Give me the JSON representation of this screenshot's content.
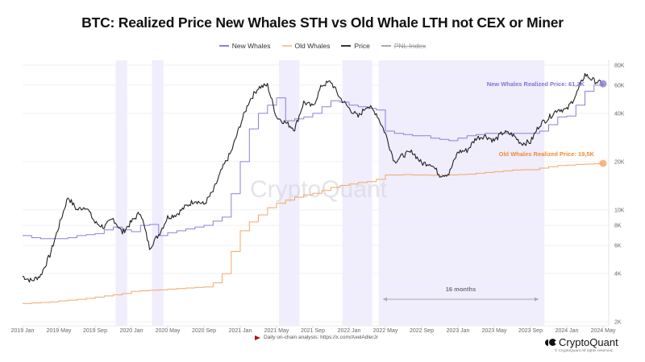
{
  "chart_data": {
    "type": "line",
    "title": "BTC: Realized Price New Whales STH vs Old Whale LTH not CEX or Miner",
    "xlabel": "",
    "ylabel": "",
    "yscale": "log",
    "ylim": [
      2000,
      80000
    ],
    "grid": true,
    "legend_position": "top-center",
    "legend": [
      {
        "name": "New Whales",
        "color": "#8a80d8",
        "disabled": false
      },
      {
        "name": "Old Whales",
        "color": "#f0a868",
        "disabled": false
      },
      {
        "name": "Price",
        "color": "#222222",
        "disabled": false
      },
      {
        "name": "PNL Index",
        "color": "#999999",
        "disabled": true
      }
    ],
    "y_ticks": [
      {
        "value": 80000,
        "label": "80K"
      },
      {
        "value": 60000,
        "label": "60K"
      },
      {
        "value": 40000,
        "label": "40K"
      },
      {
        "value": 20000,
        "label": "20K"
      },
      {
        "value": 10000,
        "label": "10K"
      },
      {
        "value": 8000,
        "label": "8K"
      },
      {
        "value": 6000,
        "label": "6K"
      },
      {
        "value": 4000,
        "label": "4K"
      },
      {
        "value": 2000,
        "label": "2K"
      }
    ],
    "x_ticks": [
      "2019 Jan",
      "2019 May",
      "2019 Sep",
      "2020 Jan",
      "2020 May",
      "2020 Sep",
      "2021 Jan",
      "2021 May",
      "2021 Sep",
      "2022 Jan",
      "2022 May",
      "2022 Sep",
      "2023 Jan",
      "2023 May",
      "2023 Sep",
      "2024 Jan",
      "2024 May"
    ],
    "x": [
      "2019-01",
      "2019-02",
      "2019-03",
      "2019-04",
      "2019-05",
      "2019-06",
      "2019-07",
      "2019-08",
      "2019-09",
      "2019-10",
      "2019-11",
      "2019-12",
      "2020-01",
      "2020-02",
      "2020-03",
      "2020-04",
      "2020-05",
      "2020-06",
      "2020-07",
      "2020-08",
      "2020-09",
      "2020-10",
      "2020-11",
      "2020-12",
      "2021-01",
      "2021-02",
      "2021-03",
      "2021-04",
      "2021-05",
      "2021-06",
      "2021-07",
      "2021-08",
      "2021-09",
      "2021-10",
      "2021-11",
      "2021-12",
      "2022-01",
      "2022-02",
      "2022-03",
      "2022-04",
      "2022-05",
      "2022-06",
      "2022-07",
      "2022-08",
      "2022-09",
      "2022-10",
      "2022-11",
      "2022-12",
      "2023-01",
      "2023-02",
      "2023-03",
      "2023-04",
      "2023-05",
      "2023-06",
      "2023-07",
      "2023-08",
      "2023-09",
      "2023-10",
      "2023-11",
      "2023-12",
      "2024-01",
      "2024-02",
      "2024-03",
      "2024-04",
      "2024-05"
    ],
    "series": [
      {
        "name": "Price",
        "color": "#222222",
        "values": [
          3850,
          3600,
          3900,
          5200,
          7900,
          12000,
          10000,
          10500,
          8300,
          7800,
          8800,
          7200,
          8400,
          9700,
          5800,
          7000,
          9000,
          9400,
          10500,
          11500,
          10800,
          13000,
          18000,
          23000,
          34000,
          48000,
          58000,
          60000,
          38000,
          35000,
          32000,
          47000,
          44000,
          60000,
          63000,
          50000,
          43000,
          38000,
          45000,
          40000,
          30000,
          20000,
          22000,
          23000,
          19500,
          19500,
          16500,
          16800,
          23000,
          23500,
          28000,
          29000,
          27000,
          30500,
          29500,
          26000,
          26500,
          34000,
          37500,
          42500,
          42000,
          52000,
          70000,
          64000,
          61000
        ]
      },
      {
        "name": "New Whales",
        "color": "#8a80d8",
        "values": [
          6900,
          6700,
          6600,
          6600,
          6600,
          6700,
          6900,
          7000,
          7100,
          7500,
          7800,
          7500,
          7300,
          8000,
          8100,
          6900,
          7200,
          7400,
          7600,
          7800,
          8000,
          8500,
          9000,
          12600,
          20000,
          32000,
          40000,
          45000,
          50000,
          36000,
          37000,
          38000,
          40000,
          44000,
          48000,
          47000,
          45000,
          44000,
          43000,
          42000,
          31000,
          30000,
          29500,
          29000,
          29000,
          28000,
          27500,
          27000,
          28000,
          29000,
          29500,
          30000,
          30000,
          30000,
          30000,
          30000,
          30000,
          31000,
          34000,
          38000,
          38500,
          45000,
          55000,
          60000,
          61200
        ]
      },
      {
        "name": "Old Whales",
        "color": "#f0a868",
        "values": [
          2600,
          2620,
          2640,
          2660,
          2700,
          2730,
          2760,
          2800,
          2850,
          2900,
          2950,
          3000,
          3100,
          3120,
          3150,
          3170,
          3200,
          3220,
          3250,
          3280,
          3300,
          3500,
          4000,
          5500,
          7400,
          8400,
          9300,
          10300,
          11000,
          11500,
          12000,
          12400,
          12700,
          13200,
          13800,
          14200,
          14500,
          14800,
          15000,
          15500,
          16500,
          16500,
          16600,
          16500,
          16500,
          16400,
          16400,
          16500,
          16600,
          16700,
          16900,
          17100,
          17300,
          17500,
          17700,
          17800,
          17800,
          18200,
          18600,
          18900,
          19000,
          19200,
          19300,
          19400,
          19500
        ]
      }
    ],
    "shaded_periods": [
      {
        "start": "2019-11",
        "end": "2019-12"
      },
      {
        "start": "2020-03",
        "end": "2020-04"
      },
      {
        "start": "2021-05",
        "end": "2021-07"
      },
      {
        "start": "2021-12",
        "end": "2022-03"
      },
      {
        "start": "2022-04",
        "end": "2023-10"
      }
    ],
    "annotations": [
      {
        "text": "New Whales Realized Price: 61,2K",
        "series": "New Whales",
        "value": 61200
      },
      {
        "text": "Old Whales Realized Price: 19,5K",
        "series": "Old Whales",
        "value": 19500
      },
      {
        "text": "16 months",
        "type": "span-arrow",
        "start": "2022-05",
        "end": "2023-09"
      }
    ],
    "watermark": "CryptoQuant"
  },
  "footer": {
    "note": "Daily on-chain analysis: https://x.com/AxelAdlerJr",
    "logo": "CryptoQuant",
    "copyright": "© CryptoQuant All rights reserved."
  }
}
